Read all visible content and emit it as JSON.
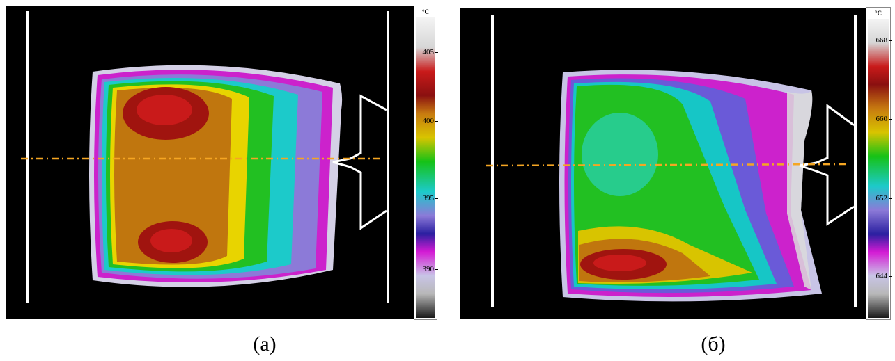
{
  "panels": [
    {
      "caption": "(а)",
      "scale": {
        "unit": "°C",
        "ticks": [
          "405",
          "400",
          "395",
          "390"
        ]
      }
    },
    {
      "caption": "(б)",
      "scale": {
        "unit": "°C",
        "ticks": [
          "668",
          "660",
          "652",
          "644"
        ]
      }
    }
  ],
  "colors": {
    "background": "#000000",
    "centerline": "#f5a623",
    "outline": "#ffffff",
    "palette": [
      "#f2f2f2",
      "#d6d6d6",
      "#8a1010",
      "#c91a1a",
      "#c77a10",
      "#a86a10",
      "#d8c400",
      "#f0e000",
      "#16c216",
      "#2ad02a",
      "#12c6c6",
      "#6fe0e0",
      "#9b8ce8",
      "#2a1fa0",
      "#d41ad4",
      "#c8c4e6",
      "#b8b8b8",
      "#1a1a1a"
    ]
  }
}
